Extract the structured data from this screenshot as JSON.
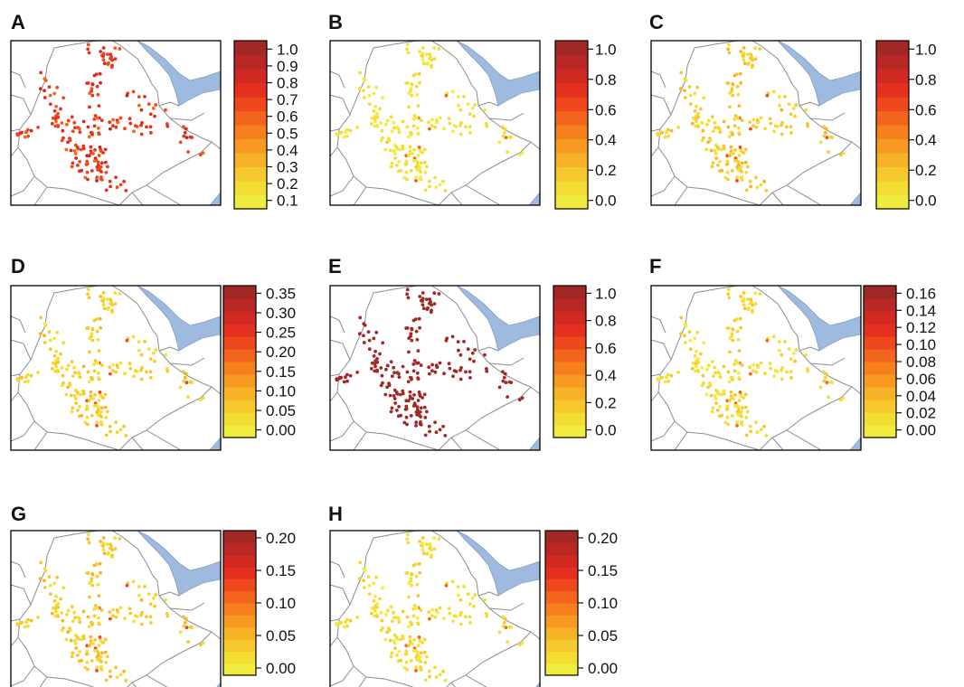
{
  "figure": {
    "colors": {
      "sea": "#9fbadf",
      "country_border": "#8c8c8c",
      "scale": [
        "#f0ec3e",
        "#f3dd33",
        "#f5c92d",
        "#f7b328",
        "#f89a22",
        "#f7801e",
        "#f3651c",
        "#ee481c",
        "#e5301f",
        "#d02a22",
        "#b92824",
        "#a22826"
      ]
    },
    "panels": [
      {
        "letter": "A",
        "tick_labels": [
          "1.0",
          "0.9",
          "0.8",
          "0.7",
          "0.6",
          "0.5",
          "0.4",
          "0.3",
          "0.2",
          "0.1"
        ],
        "scale_range": [
          0.1,
          1.0
        ],
        "point_level": {
          "mean": 0.68,
          "spread": 0.12,
          "hot": 0.85
        }
      },
      {
        "letter": "B",
        "tick_labels": [
          "1.0",
          "0.8",
          "0.6",
          "0.4",
          "0.2",
          "0.0"
        ],
        "scale_range": [
          0.0,
          1.0
        ],
        "point_level": {
          "mean": 0.1,
          "spread": 0.08,
          "hot": 0.55
        }
      },
      {
        "letter": "C",
        "tick_labels": [
          "1.0",
          "0.8",
          "0.6",
          "0.4",
          "0.2",
          "0.0"
        ],
        "scale_range": [
          0.0,
          1.0
        ],
        "point_level": {
          "mean": 0.2,
          "spread": 0.1,
          "hot": 0.65
        }
      },
      {
        "letter": "D",
        "tick_labels": [
          "0.35",
          "0.30",
          "0.25",
          "0.20",
          "0.15",
          "0.10",
          "0.05",
          "0.00"
        ],
        "scale_range": [
          0.0,
          0.35
        ],
        "point_level": {
          "mean": 0.18,
          "spread": 0.1,
          "hot": 0.6
        }
      },
      {
        "letter": "E",
        "tick_labels": [
          "1.0",
          "0.8",
          "0.6",
          "0.4",
          "0.2",
          "0.0"
        ],
        "scale_range": [
          0.0,
          1.0
        ],
        "point_level": {
          "mean": 0.95,
          "spread": 0.03,
          "hot": 1.0
        }
      },
      {
        "letter": "F",
        "tick_labels": [
          "0.16",
          "0.14",
          "0.12",
          "0.10",
          "0.08",
          "0.06",
          "0.04",
          "0.02",
          "0.00"
        ],
        "scale_range": [
          0.0,
          0.16
        ],
        "point_level": {
          "mean": 0.14,
          "spread": 0.08,
          "hot": 0.55
        }
      },
      {
        "letter": "G",
        "tick_labels": [
          "0.20",
          "0.15",
          "0.10",
          "0.05",
          "0.00"
        ],
        "scale_range": [
          0.0,
          0.2
        ],
        "point_level": {
          "mean": 0.2,
          "spread": 0.1,
          "hot": 0.65
        }
      },
      {
        "letter": "H",
        "tick_labels": [
          "0.20",
          "0.15",
          "0.10",
          "0.05",
          "0.00"
        ],
        "scale_range": [
          0.0,
          0.2
        ],
        "point_level": {
          "mean": 0.13,
          "spread": 0.07,
          "hot": 0.55
        }
      }
    ]
  }
}
